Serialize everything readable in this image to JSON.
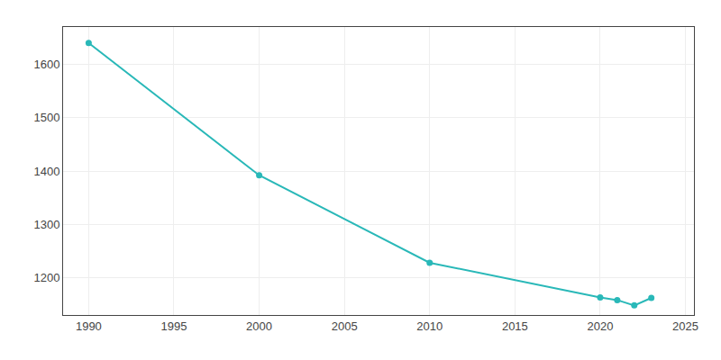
{
  "chart_data": {
    "type": "line",
    "x": [
      1990,
      2000,
      2010,
      2020,
      2021,
      2022,
      2023
    ],
    "values": [
      1640,
      1392,
      1228,
      1163,
      1158,
      1148,
      1162
    ],
    "color": "#29b8b8",
    "marker": "circle",
    "line_style": "solid",
    "xlim": [
      1988.5,
      2025.5
    ],
    "xticks": [
      1990,
      1995,
      2000,
      2005,
      2010,
      2015,
      2020,
      2025
    ],
    "ylim": [
      1130,
      1670
    ],
    "yticks": [
      1200,
      1300,
      1400,
      1500,
      1600
    ],
    "grid": true
  }
}
